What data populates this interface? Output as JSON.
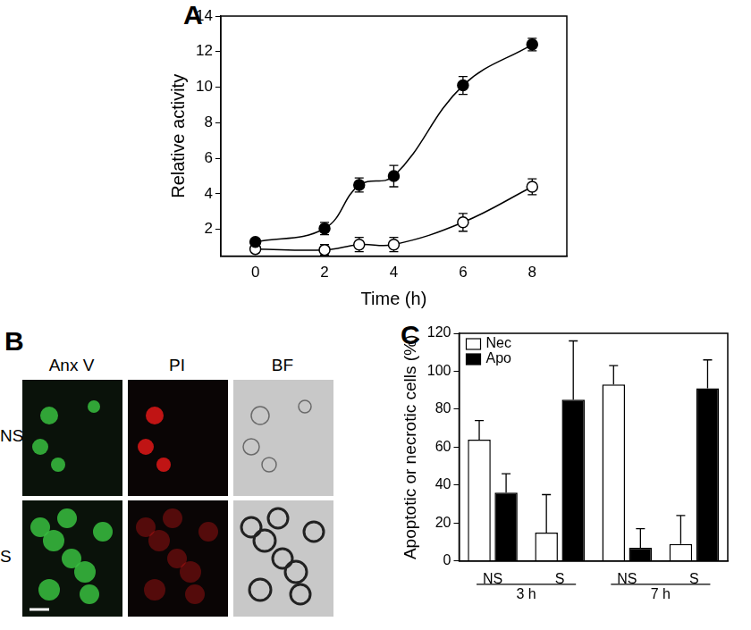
{
  "panel_b": {
    "title": "B",
    "columns": [
      "Anx V",
      "PI",
      "BF"
    ],
    "rows": [
      "NS",
      "S"
    ]
  },
  "chart_data": [
    {
      "title": "A",
      "type": "scatter",
      "x_label": "Time (h)",
      "y_label": "Relative activity",
      "xlim": [
        -1,
        9
      ],
      "xticks": [
        0,
        2,
        4,
        6,
        8
      ],
      "ylim": [
        0.5,
        14
      ],
      "yticks": [
        2,
        4,
        6,
        8,
        10,
        12,
        14
      ],
      "grid": false,
      "x": [
        0,
        2,
        3,
        4,
        6,
        8
      ],
      "series": [
        {
          "color": "#000000",
          "marker": "filled_circle",
          "line_style": "solid",
          "values": [
            1.3,
            2.05,
            4.5,
            5.0,
            10.1,
            12.4
          ],
          "errors": [
            0.1,
            0.35,
            0.4,
            0.6,
            0.5,
            0.35
          ]
        },
        {
          "color": "#000000",
          "marker": "open_circle",
          "line_style": "solid",
          "values": [
            0.9,
            0.85,
            1.15,
            1.15,
            2.4,
            4.4
          ],
          "errors": [
            0.2,
            0.3,
            0.4,
            0.4,
            0.5,
            0.45
          ]
        }
      ]
    },
    {
      "title": "C",
      "type": "bar",
      "y_label": "Apoptotic or necrotic cells (%)",
      "categories": [
        "NS",
        "S",
        "NS",
        "S"
      ],
      "groups": [
        {
          "label": "3 h",
          "size": 2
        },
        {
          "label": "7 h",
          "size": 2
        }
      ],
      "ylim": [
        0,
        120
      ],
      "yticks": [
        0,
        20,
        40,
        60,
        80,
        100,
        120
      ],
      "grid": false,
      "legend": "top-left",
      "series": [
        {
          "name": "Nec",
          "color": "#ffffff",
          "values": [
            64,
            15,
            93,
            9
          ],
          "errors": [
            10,
            20,
            10,
            15
          ]
        },
        {
          "name": "Apo",
          "color": "#000000",
          "values": [
            36,
            85,
            7,
            91
          ],
          "errors": [
            10,
            31,
            10,
            15
          ]
        }
      ]
    }
  ]
}
